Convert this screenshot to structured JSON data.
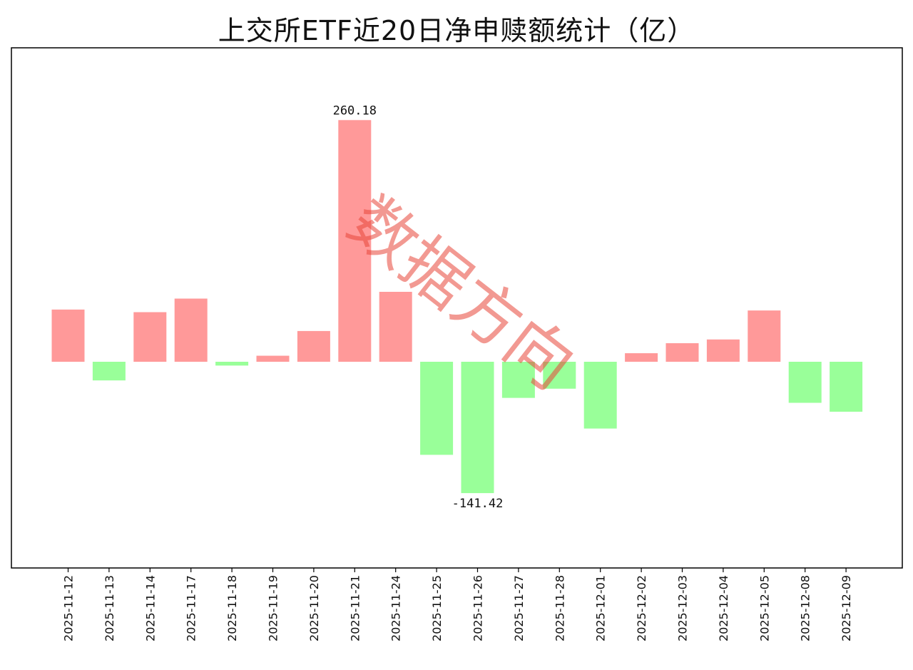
{
  "chart_data": {
    "type": "bar",
    "title": "上交所ETF近20日净申赎额统计（亿）",
    "xlabel": "",
    "ylabel": "",
    "categories": [
      "2025-11-12",
      "2025-11-13",
      "2025-11-14",
      "2025-11-17",
      "2025-11-18",
      "2025-11-19",
      "2025-11-20",
      "2025-11-21",
      "2025-11-24",
      "2025-11-25",
      "2025-11-26",
      "2025-11-27",
      "2025-11-28",
      "2025-12-01",
      "2025-12-02",
      "2025-12-03",
      "2025-12-04",
      "2025-12-05",
      "2025-12-08",
      "2025-12-09"
    ],
    "values": [
      56.2,
      -20.1,
      53.4,
      68.0,
      -4.1,
      6.5,
      33.1,
      260.18,
      75.3,
      -100.2,
      -141.42,
      -38.9,
      -29.0,
      -71.9,
      9.2,
      20.0,
      24.0,
      55.2,
      -44.2,
      -53.8
    ],
    "ylim": [
      -222,
      338
    ],
    "grid": false,
    "annotations": [
      {
        "category": "2025-11-21",
        "text": "260.18"
      },
      {
        "category": "2025-11-26",
        "text": "-141.42"
      }
    ],
    "colors": {
      "positive": "#ff9999",
      "negative": "#99ff99",
      "axis": "#000000"
    },
    "watermark": "数据方向"
  }
}
